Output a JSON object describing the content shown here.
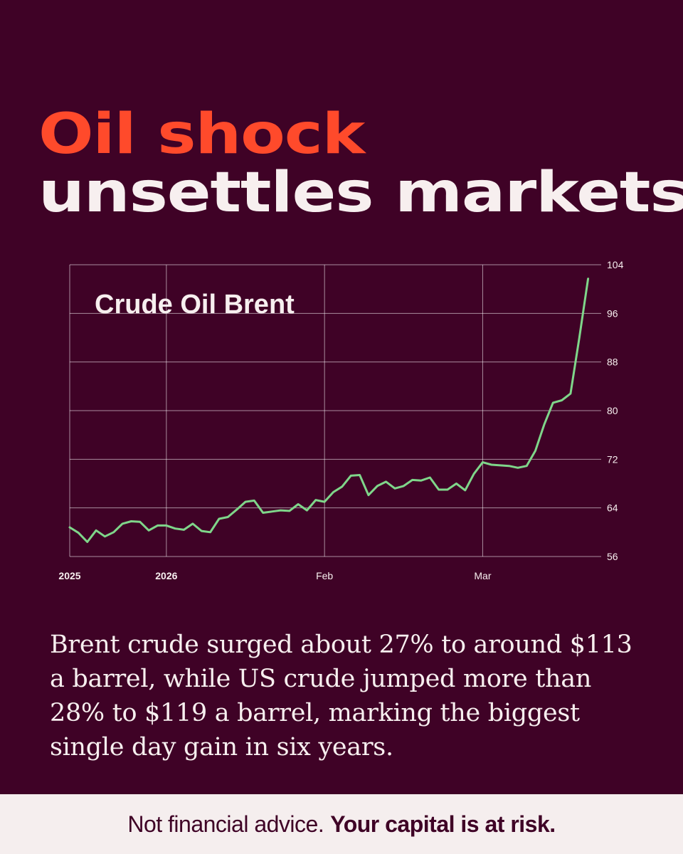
{
  "headline": {
    "line1": "Oil shock",
    "line2": "unsettles markets"
  },
  "body_text": "Brent crude surged about 27% to around $113 a barrel, while US crude jumped more than 28% to $119 a barrel, marking the biggest single day gain in six years.",
  "footer": {
    "regular": "Not financial advice.",
    "bold": "Your capital is at risk."
  },
  "colors": {
    "background": "#3f0226",
    "accent": "#ff4a2b",
    "line": "#7fd68a",
    "text": "#f7efef",
    "footer_bg": "#f5eeee"
  },
  "chart_data": {
    "type": "line",
    "title": "Crude Oil Brent",
    "xlabel": "",
    "ylabel": "",
    "ylim": [
      56,
      104
    ],
    "yticks": [
      104,
      96,
      88,
      80,
      72,
      64,
      56
    ],
    "grid": true,
    "x_ticks": [
      {
        "label": "2025",
        "pos": 0,
        "bold": true
      },
      {
        "label": "2026",
        "pos": 11,
        "bold": true
      },
      {
        "label": "Feb",
        "pos": 29,
        "bold": false
      },
      {
        "label": "Mar",
        "pos": 47,
        "bold": false
      }
    ],
    "series": [
      {
        "values": [
          60.8,
          59.9,
          58.4,
          60.3,
          59.3,
          60.0,
          61.4,
          61.8,
          61.7,
          60.3,
          61.1,
          61.1,
          60.6,
          60.4,
          61.4,
          60.2,
          60.0,
          62.2,
          62.5,
          63.7,
          65.0,
          65.2,
          63.2,
          63.4,
          63.6,
          63.5,
          64.6,
          63.6,
          65.3,
          65.0,
          66.6,
          67.5,
          69.3,
          69.4,
          66.1,
          67.6,
          68.3,
          67.2,
          67.6,
          68.6,
          68.5,
          69.0,
          67.0,
          67.0,
          68.0,
          66.9,
          69.6,
          71.5,
          71.1,
          71.0,
          70.9,
          70.6,
          70.9,
          73.4,
          77.7,
          81.3,
          81.7,
          82.8,
          92.0,
          101.7
        ]
      }
    ]
  }
}
